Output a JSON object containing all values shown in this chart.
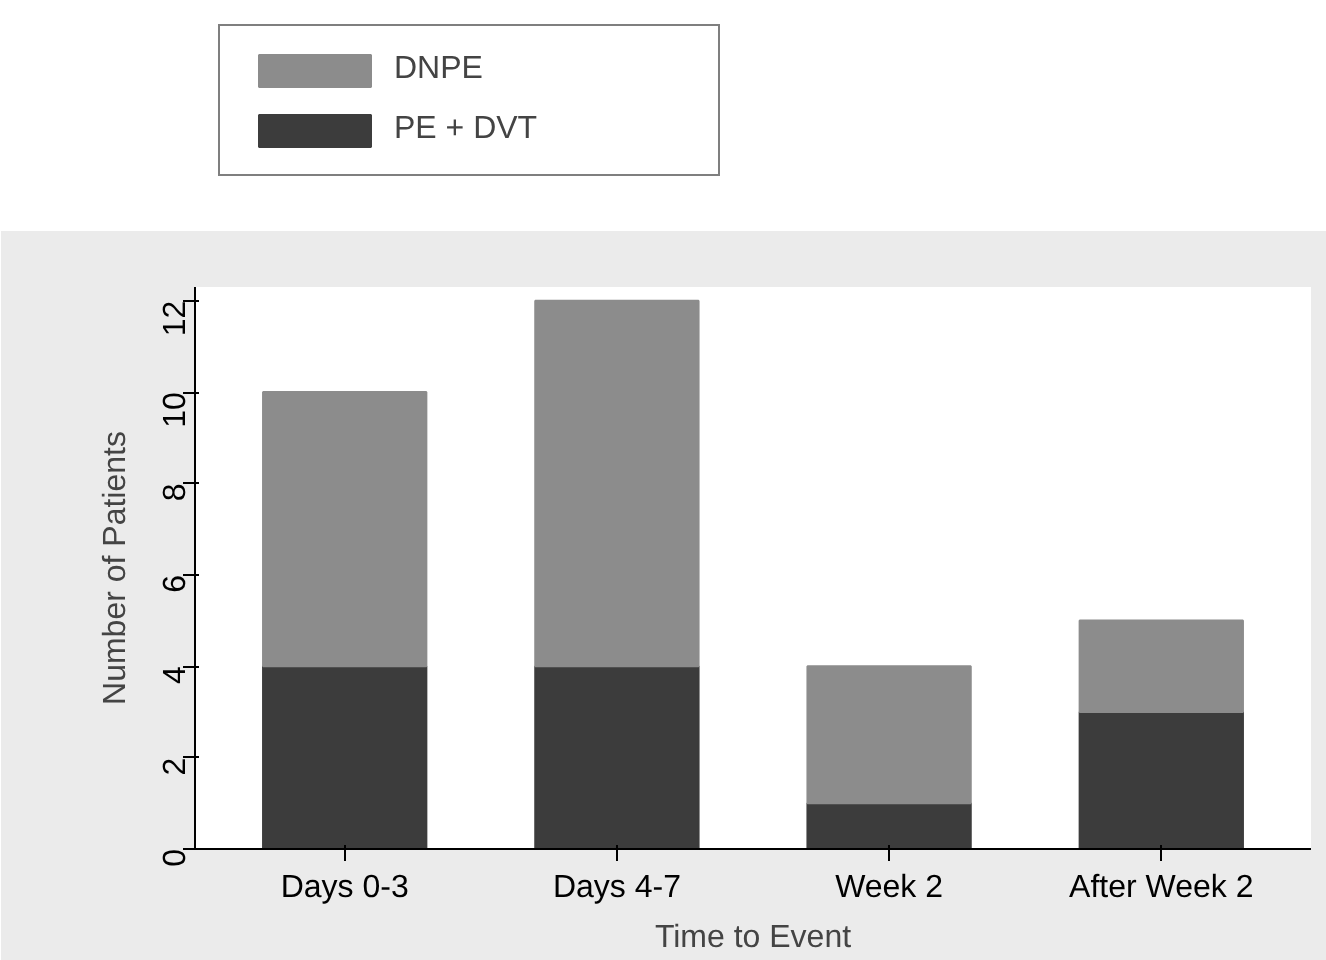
{
  "chart_data": {
    "type": "bar",
    "stacked": true,
    "xlabel": "Time to Event",
    "ylabel": "Number of Patients",
    "categories": [
      "Days 0-3",
      "Days 4-7",
      "Week 2",
      "After Week 2"
    ],
    "series": [
      {
        "name": "PE + DVT",
        "color": "#3c3c3c",
        "values": [
          4,
          4,
          1,
          3
        ]
      },
      {
        "name": "DNPE",
        "color": "#8c8c8c",
        "values": [
          6,
          8,
          3,
          2
        ]
      }
    ],
    "ylim": [
      0,
      12.3
    ],
    "yticks": [
      0,
      2,
      4,
      6,
      8,
      10,
      12
    ],
    "grid": false,
    "legend": "top left"
  }
}
